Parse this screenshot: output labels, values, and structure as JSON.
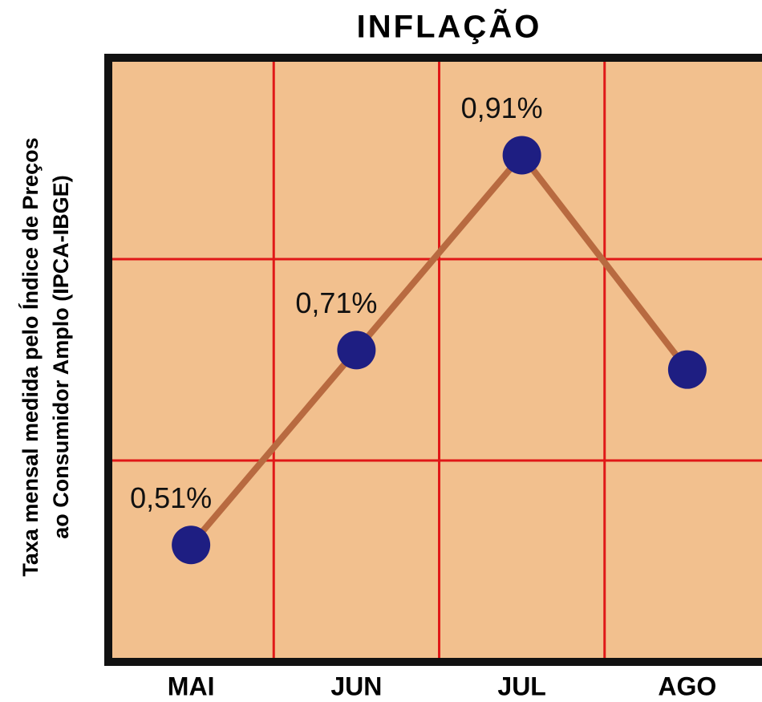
{
  "chart_data": {
    "type": "line",
    "title": "INFLAÇÃO",
    "ylabel": [
      "Taxa mensal medida pelo Índice de Preços",
      "ao Consumidor Amplo (IPCA-IBGE)"
    ],
    "categories": [
      "MAI",
      "JUN",
      "JUL",
      "AGO"
    ],
    "series": [
      {
        "name": "IPCA",
        "color": "#b86a40",
        "marker_color": "#1e1e82",
        "values": [
          0.51,
          0.71,
          0.91,
          0.69
        ],
        "value_labels": [
          "0,51%",
          "0,71%",
          "0,91%",
          null
        ]
      }
    ],
    "ylim": [
      0.39,
      1.01
    ],
    "grid": true,
    "grid_color": "#e01818",
    "background": "#f2c08e"
  }
}
